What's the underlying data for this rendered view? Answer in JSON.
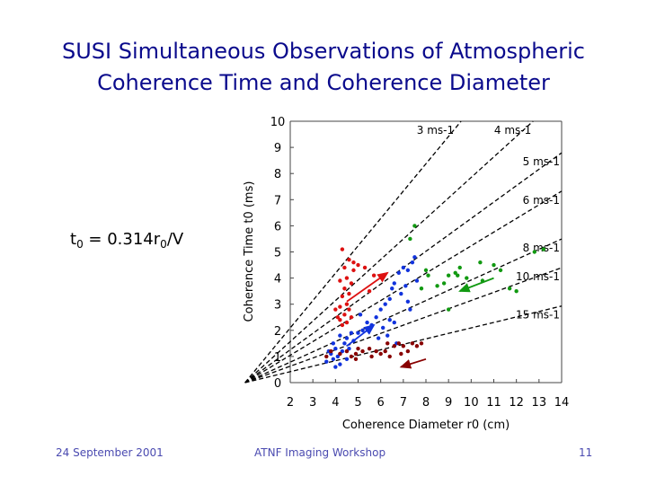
{
  "slide": {
    "title_line1": "SUSI Simultaneous Observations of Atmospheric",
    "title_line2": "Coherence Time and Coherence Diameter",
    "formula": {
      "t": "t",
      "t_sub": "0",
      "eq": " = 0.314r",
      "r_sub": "0",
      "tail": "/V"
    }
  },
  "footer": {
    "date": "24 September 2001",
    "event": "ATNF Imaging Workshop",
    "page": "11"
  },
  "chart_data": {
    "type": "scatter",
    "title": "",
    "xlabel": "Coherence Diameter r0 (cm)",
    "ylabel": "Coherence Time t0 (ms)",
    "xlim": [
      2,
      14
    ],
    "ylim": [
      0,
      10
    ],
    "xticks": [
      2,
      3,
      4,
      5,
      6,
      7,
      8,
      9,
      10,
      11,
      12,
      13,
      14
    ],
    "yticks": [
      0,
      1,
      2,
      3,
      4,
      5,
      6,
      7,
      8,
      9,
      10
    ],
    "grid": false,
    "colors": {
      "red": "#dd1111",
      "blue": "#1133dd",
      "green": "#119911",
      "darkred": "#880000",
      "axis": "#0000cc"
    },
    "wind_lines": [
      {
        "label": "3 ms-1",
        "speed": 3
      },
      {
        "label": "4 ms-1",
        "speed": 4
      },
      {
        "label": "5 ms-1",
        "speed": 5
      },
      {
        "label": "6 ms-1",
        "speed": 6
      },
      {
        "label": "8 ms-1",
        "speed": 8
      },
      {
        "label": "10 ms-1",
        "speed": 10
      },
      {
        "label": "15 ms-1",
        "speed": 15
      }
    ],
    "series": [
      {
        "color": "red",
        "points": [
          [
            4.3,
            5.1
          ],
          [
            4.4,
            4.4
          ],
          [
            4.6,
            4.7
          ],
          [
            4.8,
            4.6
          ],
          [
            5.0,
            4.5
          ],
          [
            4.2,
            3.9
          ],
          [
            4.4,
            3.6
          ],
          [
            4.6,
            3.4
          ],
          [
            4.3,
            3.3
          ],
          [
            4.5,
            3.0
          ],
          [
            4.2,
            2.9
          ],
          [
            4.6,
            2.8
          ],
          [
            4.4,
            2.6
          ],
          [
            4.2,
            2.4
          ],
          [
            4.5,
            2.3
          ],
          [
            4.3,
            2.2
          ],
          [
            4.7,
            2.5
          ],
          [
            4.1,
            2.5
          ],
          [
            4.5,
            4.0
          ],
          [
            5.5,
            3.5
          ],
          [
            5.7,
            4.1
          ],
          [
            4.8,
            4.3
          ],
          [
            5.3,
            4.4
          ],
          [
            4.0,
            2.8
          ],
          [
            4.7,
            3.8
          ]
        ]
      },
      {
        "color": "blue",
        "points": [
          [
            3.6,
            0.8
          ],
          [
            3.8,
            1.1
          ],
          [
            3.9,
            0.9
          ],
          [
            4.0,
            1.3
          ],
          [
            4.1,
            1.0
          ],
          [
            4.2,
            0.7
          ],
          [
            4.3,
            1.2
          ],
          [
            4.4,
            1.5
          ],
          [
            4.5,
            1.7
          ],
          [
            4.6,
            1.3
          ],
          [
            4.7,
            1.9
          ],
          [
            4.8,
            1.6
          ],
          [
            5.0,
            1.9
          ],
          [
            5.2,
            2.0
          ],
          [
            5.4,
            2.3
          ],
          [
            5.6,
            2.2
          ],
          [
            5.8,
            2.5
          ],
          [
            6.0,
            2.8
          ],
          [
            6.2,
            3.0
          ],
          [
            6.4,
            3.2
          ],
          [
            6.5,
            3.6
          ],
          [
            6.6,
            3.8
          ],
          [
            6.8,
            4.2
          ],
          [
            7.0,
            4.4
          ],
          [
            7.2,
            4.3
          ],
          [
            7.4,
            4.6
          ],
          [
            7.5,
            4.8
          ],
          [
            7.6,
            3.9
          ],
          [
            7.2,
            3.1
          ],
          [
            6.9,
            3.4
          ],
          [
            6.6,
            2.3
          ],
          [
            6.3,
            1.8
          ],
          [
            5.9,
            1.7
          ],
          [
            6.1,
            2.1
          ],
          [
            4.0,
            0.6
          ],
          [
            3.9,
            1.5
          ],
          [
            4.2,
            1.8
          ],
          [
            5.1,
            2.6
          ],
          [
            6.4,
            2.4
          ],
          [
            7.1,
            3.7
          ],
          [
            7.3,
            2.8
          ],
          [
            6.7,
            1.5
          ],
          [
            3.7,
            1.2
          ],
          [
            4.5,
            0.9
          ]
        ]
      },
      {
        "color": "green",
        "points": [
          [
            7.3,
            5.5
          ],
          [
            7.5,
            6.0
          ],
          [
            7.8,
            3.6
          ],
          [
            8.0,
            4.3
          ],
          [
            8.5,
            3.7
          ],
          [
            8.8,
            3.8
          ],
          [
            9.0,
            4.1
          ],
          [
            9.3,
            4.2
          ],
          [
            9.5,
            4.4
          ],
          [
            9.0,
            2.8
          ],
          [
            9.8,
            4.0
          ],
          [
            10.5,
            3.9
          ],
          [
            10.4,
            4.6
          ],
          [
            11.0,
            4.5
          ],
          [
            11.3,
            4.3
          ],
          [
            12.0,
            3.5
          ],
          [
            12.8,
            5.0
          ],
          [
            13.2,
            5.1
          ],
          [
            11.7,
            3.6
          ],
          [
            9.4,
            4.1
          ],
          [
            8.1,
            4.1
          ]
        ]
      },
      {
        "color": "darkred",
        "points": [
          [
            3.6,
            1.0
          ],
          [
            3.8,
            1.2
          ],
          [
            4.2,
            1.1
          ],
          [
            4.5,
            1.2
          ],
          [
            4.7,
            1.0
          ],
          [
            4.9,
            1.1
          ],
          [
            5.0,
            1.3
          ],
          [
            5.2,
            1.2
          ],
          [
            5.5,
            1.3
          ],
          [
            5.8,
            1.2
          ],
          [
            6.0,
            1.1
          ],
          [
            6.2,
            1.2
          ],
          [
            6.4,
            1.0
          ],
          [
            6.6,
            1.4
          ],
          [
            6.8,
            1.5
          ],
          [
            7.0,
            1.4
          ],
          [
            7.2,
            1.2
          ],
          [
            7.4,
            1.5
          ],
          [
            7.6,
            1.4
          ],
          [
            7.8,
            1.5
          ],
          [
            5.6,
            1.0
          ],
          [
            6.9,
            1.1
          ],
          [
            4.9,
            0.9
          ],
          [
            6.3,
            1.5
          ]
        ]
      }
    ],
    "arrows": [
      {
        "color": "red",
        "from": [
          4.5,
          3.1
        ],
        "to": [
          6.3,
          4.2
        ]
      },
      {
        "color": "blue",
        "from": [
          4.5,
          1.4
        ],
        "to": [
          5.7,
          2.2
        ]
      },
      {
        "color": "green",
        "from": [
          11.0,
          4.0
        ],
        "to": [
          9.5,
          3.5
        ]
      },
      {
        "color": "darkred",
        "from": [
          8.0,
          0.9
        ],
        "to": [
          6.9,
          0.6
        ]
      }
    ]
  }
}
